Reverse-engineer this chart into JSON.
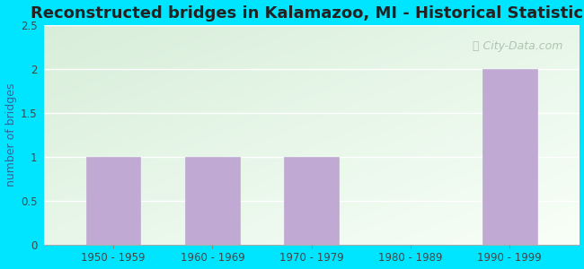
{
  "title": "Reconstructed bridges in Kalamazoo, MI - Historical Statistics",
  "categories": [
    "1950 - 1959",
    "1960 - 1969",
    "1970 - 1979",
    "1980 - 1989",
    "1990 - 1999"
  ],
  "values": [
    1,
    1,
    1,
    0,
    2
  ],
  "bar_color": "#c0aad4",
  "bar_edge_color": "#c0aad4",
  "ylabel": "number of bridges",
  "ylim": [
    0,
    2.5
  ],
  "yticks": [
    0,
    0.5,
    1,
    1.5,
    2,
    2.5
  ],
  "background_outer": "#00e5ff",
  "bg_top_left": "#d8eeda",
  "bg_bottom_right": "#f8fff8",
  "title_color": "#222222",
  "axis_label_color": "#336699",
  "tick_color": "#444444",
  "grid_color": "#e8e8e8",
  "watermark_color": "#aabfaa",
  "title_fontsize": 13,
  "ylabel_fontsize": 9,
  "tick_fontsize": 8.5
}
